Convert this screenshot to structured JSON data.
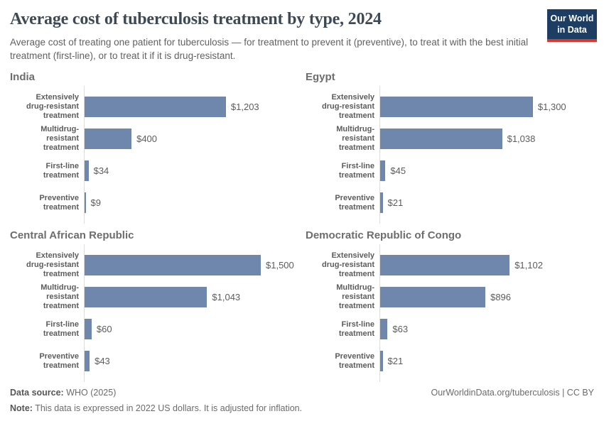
{
  "header": {
    "title": "Average cost of tuberculosis treatment by type, 2024",
    "subtitle": "Average cost of treating one patient for tuberculosis — for treatment to prevent it (preventive), to treat it with the best initial treatment (first-line), or to treat it if it is drug-resistant.",
    "logo": {
      "line1": "Our World",
      "line2": "in Data"
    }
  },
  "chart_data": {
    "type": "bar",
    "orientation": "horizontal",
    "unit": "US$",
    "xlim": [
      0,
      1500
    ],
    "grid": false,
    "categories": [
      "Extensively drug-resistant treatment",
      "Multidrug-resistant treatment",
      "First-line treatment",
      "Preventive treatment"
    ],
    "category_lines": [
      [
        "Extensively",
        "drug-resistant",
        "treatment"
      ],
      [
        "Multidrug-resistant",
        "treatment"
      ],
      [
        "First-line treatment"
      ],
      [
        "Preventive",
        "treatment"
      ]
    ],
    "panels": [
      {
        "country": "India",
        "values": [
          1203,
          400,
          34,
          9
        ],
        "value_labels": [
          "$1,203",
          "$400",
          "$34",
          "$9"
        ]
      },
      {
        "country": "Egypt",
        "values": [
          1300,
          1038,
          45,
          21
        ],
        "value_labels": [
          "$1,300",
          "$1,038",
          "$45",
          "$21"
        ]
      },
      {
        "country": "Central African Republic",
        "values": [
          1500,
          1043,
          60,
          43
        ],
        "value_labels": [
          "$1,500",
          "$1,043",
          "$60",
          "$43"
        ]
      },
      {
        "country": "Democratic Republic of Congo",
        "values": [
          1102,
          896,
          63,
          21
        ],
        "value_labels": [
          "$1,102",
          "$896",
          "$63",
          "$21"
        ]
      }
    ],
    "colors": {
      "bar": "#6f87ac",
      "axis": "#dcdcdc"
    }
  },
  "footer": {
    "source_label": "Data source:",
    "source_text": " WHO (2025)",
    "link_text": "OurWorldinData.org/tuberculosis | CC BY",
    "note_label": "Note:",
    "note_text": " This data is expressed in 2022 US dollars. It is adjusted for inflation."
  }
}
